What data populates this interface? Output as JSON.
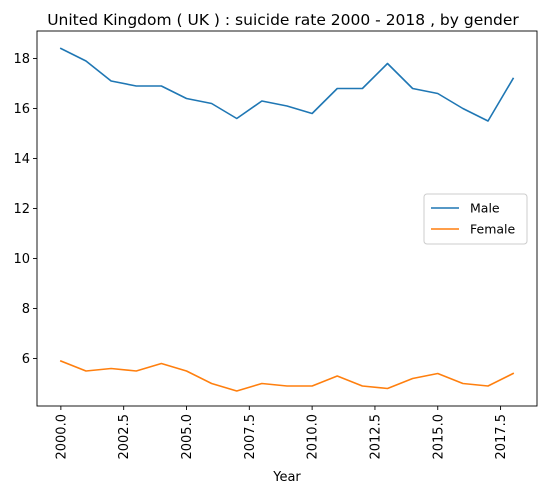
{
  "chart_data": {
    "type": "line",
    "title": "United Kingdom ( UK ) : suicide rate 2000 - 2018 , by gender",
    "xlabel": "Year",
    "ylabel": "",
    "x": [
      2000,
      2001,
      2002,
      2003,
      2004,
      2005,
      2006,
      2007,
      2008,
      2009,
      2010,
      2011,
      2012,
      2013,
      2014,
      2015,
      2016,
      2017,
      2018
    ],
    "series": [
      {
        "name": "Male",
        "color": "#1f77b4",
        "values": [
          18.4,
          17.9,
          17.1,
          16.9,
          16.9,
          16.4,
          16.2,
          15.6,
          16.3,
          16.1,
          15.8,
          16.8,
          16.8,
          17.8,
          16.8,
          16.6,
          16.0,
          15.5,
          17.2
        ]
      },
      {
        "name": "Female",
        "color": "#ff7f0e",
        "values": [
          5.9,
          5.5,
          5.6,
          5.5,
          5.8,
          5.5,
          5.0,
          4.7,
          5.0,
          4.9,
          4.9,
          5.3,
          4.9,
          4.8,
          5.2,
          5.4,
          5.0,
          4.9,
          5.4
        ]
      }
    ],
    "xlim": [
      1999.05,
      2018.95
    ],
    "ylim": [
      4.1,
      19.1
    ],
    "xticks": [
      2000.0,
      2002.5,
      2005.0,
      2007.5,
      2010.0,
      2012.5,
      2015.0,
      2017.5
    ],
    "xtick_labels": [
      "2000.0",
      "2002.5",
      "2005.0",
      "2007.5",
      "2010.0",
      "2012.5",
      "2015.0",
      "2017.5"
    ],
    "yticks": [
      6,
      8,
      10,
      12,
      14,
      16,
      18
    ],
    "ytick_labels": [
      "6",
      "8",
      "10",
      "12",
      "14",
      "16",
      "18"
    ],
    "grid": false,
    "legend": "center-right"
  }
}
